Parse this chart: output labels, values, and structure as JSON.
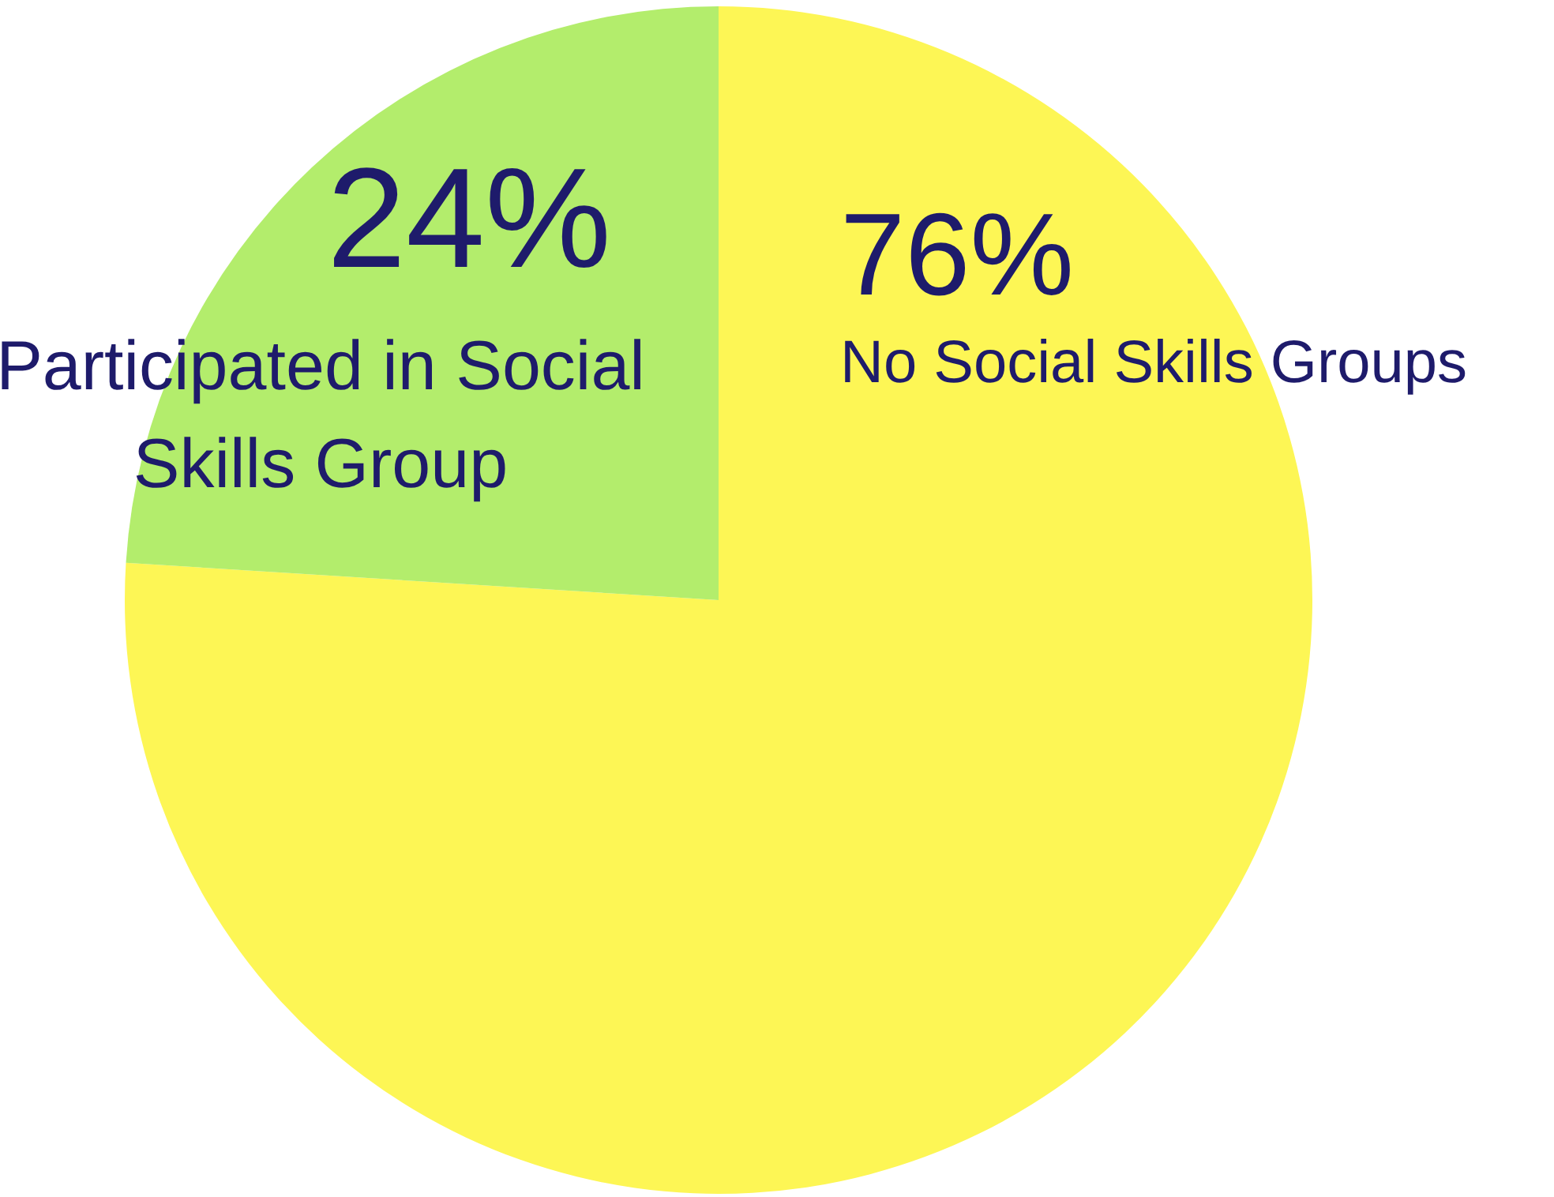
{
  "chart_data": {
    "type": "pie",
    "categories": [
      "No Social Skills Groups",
      "Participated in Social Skills Group"
    ],
    "values": [
      76,
      24
    ],
    "value_labels": [
      "76%",
      "24%"
    ],
    "colors": [
      "#fdf655",
      "#b3ed6c"
    ],
    "legend": false
  }
}
